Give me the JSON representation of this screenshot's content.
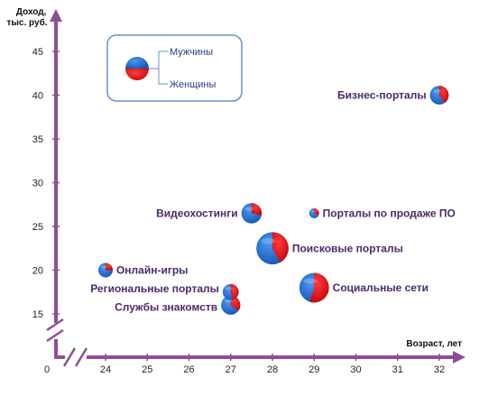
{
  "chart_data": {
    "type": "bubble-pie",
    "xlabel": "Возраст, лет",
    "ylabel": "Доход, тыс. руб.",
    "origin_label": "0",
    "x_ticks": [
      24,
      25,
      26,
      27,
      28,
      29,
      30,
      31,
      32
    ],
    "y_ticks": [
      15,
      20,
      25,
      30,
      35,
      40,
      45
    ],
    "legend": [
      {
        "name": "Мужчины",
        "color": "#1f6fd6"
      },
      {
        "name": "Женщины",
        "color": "#e8141c"
      }
    ],
    "points": [
      {
        "label": "Бизнес-порталы",
        "x": 32,
        "y": 40,
        "size": 2.2,
        "women_share": 0.4
      },
      {
        "label": "Порталы по продаже ПО",
        "x": 29,
        "y": 26.5,
        "size": 0.6,
        "women_share": 0.3
      },
      {
        "label": "Видеохостинги",
        "x": 27.5,
        "y": 26.5,
        "size": 2.6,
        "women_share": 0.28
      },
      {
        "label": "Поисковые порталы",
        "x": 28,
        "y": 22.5,
        "size": 6.5,
        "women_share": 0.42
      },
      {
        "label": "Онлайн-игры",
        "x": 24,
        "y": 20,
        "size": 1.3,
        "women_share": 0.25
      },
      {
        "label": "Социальные сети",
        "x": 29,
        "y": 18,
        "size": 5.5,
        "women_share": 0.55
      },
      {
        "label": "Региональные порталы",
        "x": 27,
        "y": 17.5,
        "size": 1.6,
        "women_share": 0.45
      },
      {
        "label": "Службы знакомств",
        "x": 27,
        "y": 16,
        "size": 2.3,
        "women_share": 0.35
      }
    ]
  }
}
